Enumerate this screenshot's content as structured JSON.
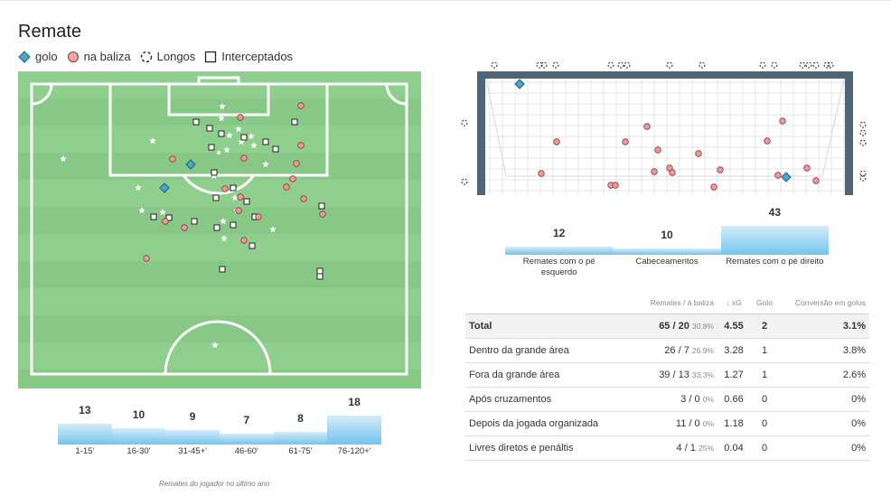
{
  "title": "Remate",
  "legend": [
    {
      "icon": "goal-diamond-icon",
      "label": "golo"
    },
    {
      "icon": "on-target-circle-icon",
      "label": "na baliza"
    },
    {
      "icon": "dashed-circle-icon",
      "label": "Longos"
    },
    {
      "icon": "square-icon",
      "label": "Interceptados"
    }
  ],
  "colors": {
    "pitch_light": "#8fcf8d",
    "pitch_dark": "#87c886",
    "goal_marker": "#4aa6cf",
    "on_target": "#ef9a9a",
    "bar_top": "#d3ecfa",
    "bar_bottom": "#74c4ee",
    "goal_frame": "#4f6474"
  },
  "pitch_shots": {
    "goals": [
      [
        211,
        182
      ],
      [
        182,
        208
      ]
    ],
    "on_target": [
      [
        333,
        117
      ],
      [
        266,
        130
      ],
      [
        333,
        161
      ],
      [
        191,
        176
      ],
      [
        270,
        175
      ],
      [
        328,
        181
      ],
      [
        317,
        207
      ],
      [
        249,
        209
      ],
      [
        324,
        198
      ],
      [
        266,
        218
      ],
      [
        336,
        220
      ],
      [
        264,
        233
      ],
      [
        183,
        245
      ],
      [
        204,
        252
      ],
      [
        286,
        240
      ],
      [
        357,
        237
      ],
      [
        270,
        266
      ],
      [
        162,
        286
      ]
    ],
    "blocked": [
      [
        217,
        135
      ],
      [
        232,
        142
      ],
      [
        326,
        135
      ],
      [
        245,
        148
      ],
      [
        270,
        152
      ],
      [
        294,
        157
      ],
      [
        234,
        163
      ],
      [
        305,
        165
      ],
      [
        237,
        191
      ],
      [
        258,
        208
      ],
      [
        239,
        219
      ],
      [
        273,
        223
      ],
      [
        170,
        240
      ],
      [
        187,
        241
      ],
      [
        215,
        245
      ],
      [
        240,
        252
      ],
      [
        258,
        249
      ],
      [
        282,
        240
      ],
      [
        356,
        228
      ],
      [
        279,
        272
      ],
      [
        246,
        298
      ],
      [
        354,
        300
      ],
      [
        354,
        306
      ]
    ],
    "stars": [
      [
        246,
        118
      ],
      [
        245,
        131
      ],
      [
        264,
        143
      ],
      [
        254,
        150
      ],
      [
        278,
        151
      ],
      [
        169,
        156
      ],
      [
        251,
        166
      ],
      [
        281,
        161
      ],
      [
        294,
        182
      ],
      [
        70,
        176
      ],
      [
        237,
        195
      ],
      [
        153,
        208
      ],
      [
        260,
        219
      ],
      [
        157,
        233
      ],
      [
        180,
        235
      ],
      [
        214,
        245
      ],
      [
        247,
        245
      ],
      [
        262,
        233
      ],
      [
        302,
        254
      ],
      [
        248,
        264
      ],
      [
        238,
        382
      ],
      [
        267,
        157
      ]
    ]
  },
  "goal_shots": {
    "goals": [
      [
        575,
        93
      ],
      [
        870,
        196
      ]
    ],
    "on_target": [
      [
        866,
        134
      ],
      [
        716,
        140
      ],
      [
        616,
        157
      ],
      [
        692,
        157
      ],
      [
        849,
        156
      ],
      [
        728,
        166
      ],
      [
        773,
        170
      ],
      [
        599,
        192
      ],
      [
        741,
        186
      ],
      [
        724,
        190
      ],
      [
        744,
        191
      ],
      [
        797,
        188
      ],
      [
        893,
        186
      ],
      [
        861,
        194
      ],
      [
        903,
        200
      ],
      [
        676,
        205
      ],
      [
        681,
        205
      ],
      [
        790,
        207
      ]
    ],
    "long_top": [
      547,
      597,
      602,
      615,
      676,
      687,
      694,
      741,
      777,
      844,
      857,
      888,
      895,
      903,
      915,
      919
    ],
    "long_left": [
      [
        514,
        136
      ],
      [
        514,
        201
      ]
    ],
    "long_right": [
      [
        955,
        138
      ],
      [
        955,
        147
      ],
      [
        955,
        158
      ],
      [
        955,
        192
      ],
      [
        955,
        197
      ]
    ]
  },
  "type_bars": [
    {
      "label": "Remates com o pé esquerdo",
      "value": 12
    },
    {
      "label": "Cabeceamentos",
      "value": 10
    },
    {
      "label": "Remates com o pé direito",
      "value": 43
    }
  ],
  "time_bars": [
    {
      "label": "1-15'",
      "value": 13
    },
    {
      "label": "16-30'",
      "value": 10
    },
    {
      "label": "31-45+'",
      "value": 9
    },
    {
      "label": "46-60'",
      "value": 7
    },
    {
      "label": "61-75'",
      "value": 8
    },
    {
      "label": "76-120+'",
      "value": 18
    }
  ],
  "stats": {
    "headers": {
      "shots": "Remates / à baliza",
      "xg": "↓ xG",
      "goals": "Golo",
      "conv": "Conversão em golos"
    },
    "rows": [
      {
        "name": "Total",
        "shots": "65 / 20",
        "pct": "30.8%",
        "xg": "4.55",
        "goals": "2",
        "conv": "3.1%"
      },
      {
        "name": "Dentro da grande área",
        "shots": "26 / 7",
        "pct": "26.9%",
        "xg": "3.28",
        "goals": "1",
        "conv": "3.8%"
      },
      {
        "name": "Fora da grande área",
        "shots": "39 / 13",
        "pct": "33.3%",
        "xg": "1.27",
        "goals": "1",
        "conv": "2.6%"
      },
      {
        "name": "Após cruzamentos",
        "shots": "3 / 0",
        "pct": "0%",
        "xg": "0.66",
        "goals": "0",
        "conv": "0%"
      },
      {
        "name": "Depois da jogada organizada",
        "shots": "11 / 0",
        "pct": "0%",
        "xg": "1.18",
        "goals": "0",
        "conv": "0%"
      },
      {
        "name": "Livres diretos e penáltis",
        "shots": "4 / 1",
        "pct": "25%",
        "xg": "0.04",
        "goals": "0",
        "conv": "0%"
      }
    ]
  },
  "footnote": "Remates do jogador no último ano"
}
